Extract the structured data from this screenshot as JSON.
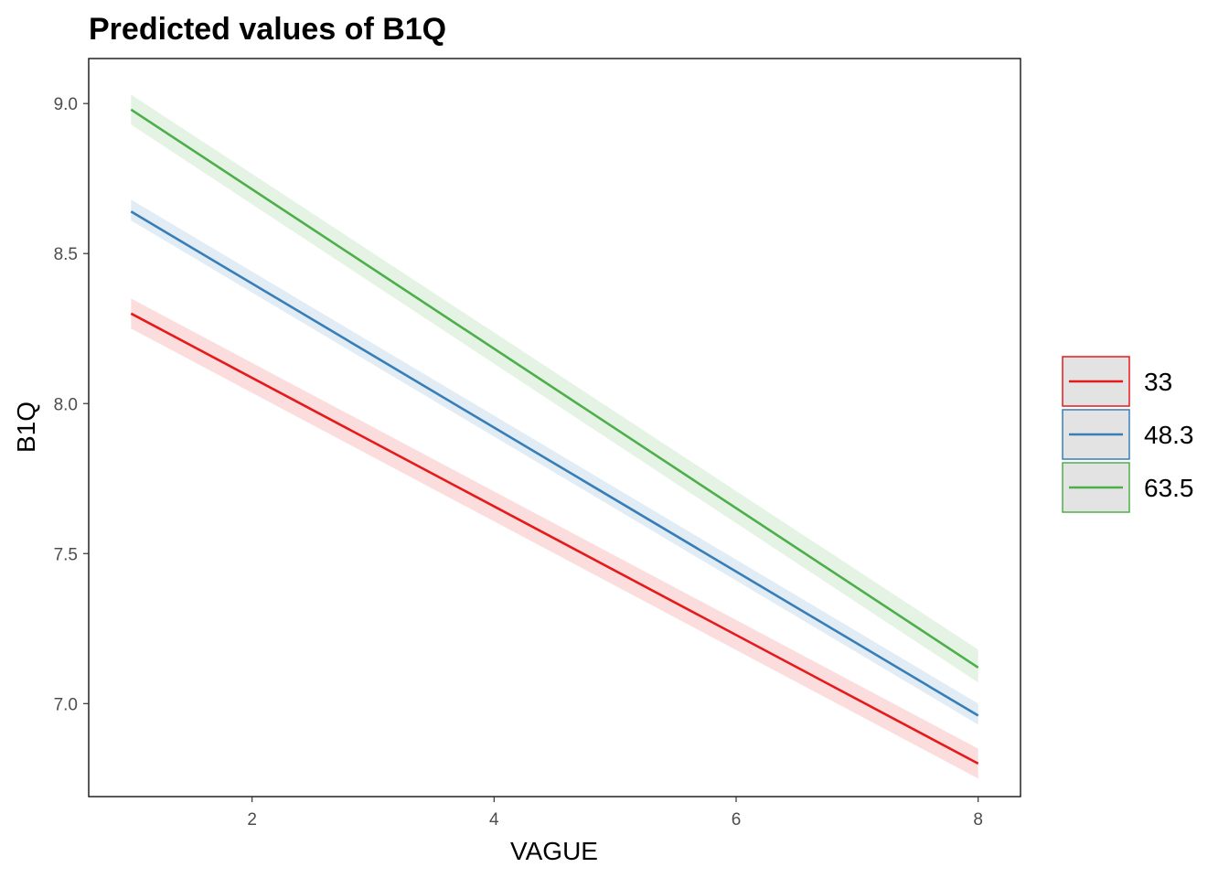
{
  "chart_data": {
    "type": "line",
    "title": "Predicted values of B1Q",
    "xlabel": "VAGUE",
    "ylabel": "B1Q",
    "xlim": [
      0.65,
      8.35
    ],
    "ylim": [
      6.69,
      9.15
    ],
    "x_ticks": [
      2,
      4,
      6,
      8
    ],
    "x_tick_labels": [
      "2",
      "4",
      "6",
      "8"
    ],
    "y_ticks": [
      7.0,
      7.5,
      8.0,
      8.5,
      9.0
    ],
    "y_tick_labels": [
      "7.0",
      "7.5",
      "8.0",
      "8.5",
      "9.0"
    ],
    "grid": false,
    "legend": "right",
    "series": [
      {
        "name": "33",
        "color": "#e41a1c",
        "x": [
          1,
          8
        ],
        "y": [
          8.3,
          6.8
        ],
        "ci_low": [
          8.25,
          6.75
        ],
        "ci_high": [
          8.35,
          6.85
        ]
      },
      {
        "name": "48.3",
        "color": "#377eb8",
        "x": [
          1,
          8
        ],
        "y": [
          8.64,
          6.96
        ],
        "ci_low": [
          8.61,
          6.93
        ],
        "ci_high": [
          8.68,
          7.0
        ]
      },
      {
        "name": "63.5",
        "color": "#4daf4a",
        "x": [
          1,
          8
        ],
        "y": [
          8.98,
          7.12
        ],
        "ci_low": [
          8.93,
          7.07
        ],
        "ci_high": [
          9.03,
          7.18
        ]
      }
    ]
  }
}
